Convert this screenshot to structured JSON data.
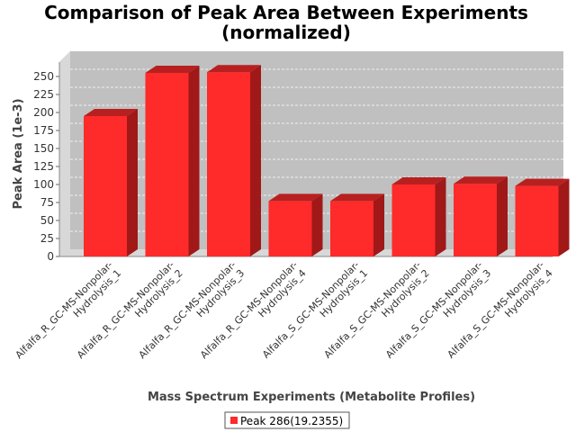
{
  "chart_data": {
    "type": "bar",
    "title_line1": "Comparison of Peak Area Between Experiments",
    "title_line2": "(normalized)",
    "xlabel": "Mass Spectrum Experiments (Metabolite Profiles)",
    "ylabel": "Peak Area (1e-3)",
    "ylim": [
      0,
      270
    ],
    "yticks": [
      0,
      25,
      50,
      75,
      100,
      125,
      150,
      175,
      200,
      225,
      250
    ],
    "grid": true,
    "legend_placement": "bottom",
    "categories": [
      [
        "Alfalfa_R_GC-MS-Nonpolar-",
        "Hydrolysis_1"
      ],
      [
        "Alfalfa_R_GC-MS-Nonpolar-",
        "Hydrolysis_2"
      ],
      [
        "Alfalfa_R_GC-MS-Nonpolar-",
        "Hydrolysis_3"
      ],
      [
        "Alfalfa_R_GC-MS-Nonpolar-",
        "Hydrolysis_4"
      ],
      [
        "Alfalfa_S_GC-MS-Nonpolar-",
        "Hydrolysis_1"
      ],
      [
        "Alfalfa_S_GC-MS-Nonpolar-",
        "Hydrolysis_2"
      ],
      [
        "Alfalfa_S_GC-MS-Nonpolar-",
        "Hydrolysis_3"
      ],
      [
        "Alfalfa_S_GC-MS-Nonpolar-",
        "Hydrolysis_4"
      ]
    ],
    "series": [
      {
        "name": "Peak 286(19.2355)",
        "color": "#ff2a2a",
        "values": [
          195,
          255,
          256,
          77,
          77,
          100,
          101,
          98
        ]
      }
    ]
  }
}
